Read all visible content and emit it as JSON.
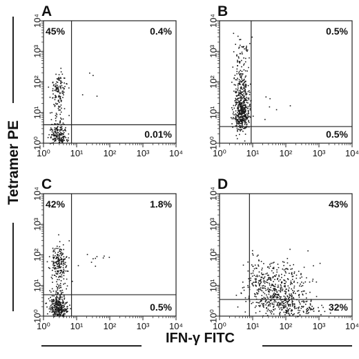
{
  "figure": {
    "ylabel": "Tetramer PE",
    "xlabel": "IFN-γ FITC"
  },
  "chart_data": [
    {
      "type": "scatter",
      "panel": "A",
      "xscale": "log",
      "yscale": "log",
      "xlim": [
        1,
        10000
      ],
      "ylim": [
        1,
        10000
      ],
      "xticks": [
        "10⁰",
        "10¹",
        "10²",
        "10³",
        "10⁴"
      ],
      "yticks": [
        "10⁰",
        "10¹",
        "10²",
        "10³",
        "10⁴"
      ],
      "gate_x": 7,
      "gate_y": 4,
      "quadrants": {
        "upper_left": "45%",
        "upper_right": "0.4%",
        "lower_left": "",
        "lower_right": "0.01%"
      },
      "clusters": [
        {
          "x": 2.8,
          "y": 60,
          "sx": 0.13,
          "sy": 0.28,
          "n": 110
        },
        {
          "x": 2.7,
          "y": 1.6,
          "sx": 0.14,
          "sy": 0.2,
          "n": 170
        },
        {
          "x": 3,
          "y": 6,
          "sx": 0.15,
          "sy": 0.5,
          "n": 55
        },
        {
          "x": 14,
          "y": 80,
          "sx": 0.3,
          "sy": 0.25,
          "n": 4
        }
      ]
    },
    {
      "type": "scatter",
      "panel": "B",
      "xscale": "log",
      "yscale": "log",
      "xlim": [
        1,
        10000
      ],
      "ylim": [
        1,
        10000
      ],
      "xticks": [
        "10⁰",
        "10¹",
        "10²",
        "10³",
        "10⁴"
      ],
      "yticks": [
        "10⁰",
        "10¹",
        "10²",
        "10³",
        "10⁴"
      ],
      "gate_x": 9,
      "gate_y": 3.5,
      "quadrants": {
        "upper_left": "",
        "upper_right": "0.5%",
        "lower_left": "",
        "lower_right": "0.5%"
      },
      "clusters": [
        {
          "x": 4.5,
          "y": 10,
          "sx": 0.11,
          "sy": 0.3,
          "n": 380
        },
        {
          "x": 4.5,
          "y": 60,
          "sx": 0.12,
          "sy": 0.35,
          "n": 140
        },
        {
          "x": 4.5,
          "y": 600,
          "sx": 0.12,
          "sy": 0.4,
          "n": 60
        },
        {
          "x": 20,
          "y": 15,
          "sx": 0.3,
          "sy": 0.4,
          "n": 8
        }
      ]
    },
    {
      "type": "scatter",
      "panel": "C",
      "xscale": "log",
      "yscale": "log",
      "xlim": [
        1,
        10000
      ],
      "ylim": [
        1,
        10000
      ],
      "xticks": [
        "10⁰",
        "10¹",
        "10²",
        "10³",
        "10⁴"
      ],
      "yticks": [
        "10⁰",
        "10¹",
        "10²",
        "10³",
        "10⁴"
      ],
      "gate_x": 7,
      "gate_y": 5,
      "quadrants": {
        "upper_left": "42%",
        "upper_right": "1.8%",
        "lower_left": "",
        "lower_right": "0.5%"
      },
      "clusters": [
        {
          "x": 2.8,
          "y": 60,
          "sx": 0.13,
          "sy": 0.3,
          "n": 170
        },
        {
          "x": 2.7,
          "y": 1.8,
          "sx": 0.13,
          "sy": 0.22,
          "n": 320
        },
        {
          "x": 3,
          "y": 8,
          "sx": 0.15,
          "sy": 0.4,
          "n": 60
        },
        {
          "x": 30,
          "y": 70,
          "sx": 0.3,
          "sy": 0.2,
          "n": 10
        }
      ]
    },
    {
      "type": "scatter",
      "panel": "D",
      "xscale": "log",
      "yscale": "log",
      "xlim": [
        1,
        10000
      ],
      "ylim": [
        1,
        10000
      ],
      "xticks": [
        "10⁰",
        "10¹",
        "10²",
        "10³",
        "10⁴"
      ],
      "yticks": [
        "10⁰",
        "10¹",
        "10²",
        "10³",
        "10⁴"
      ],
      "gate_x": 8,
      "gate_y": 3.5,
      "quadrants": {
        "upper_left": "",
        "upper_right": "43%",
        "lower_left": "",
        "lower_right": "32%"
      },
      "clusters": [
        {
          "x": 50,
          "y": 8,
          "sx": 0.45,
          "sy": 0.45,
          "n": 480
        },
        {
          "x": 150,
          "y": 2,
          "sx": 0.5,
          "sy": 0.15,
          "n": 140
        },
        {
          "x": 12,
          "y": 20,
          "sx": 0.2,
          "sy": 0.5,
          "n": 40
        }
      ]
    }
  ]
}
